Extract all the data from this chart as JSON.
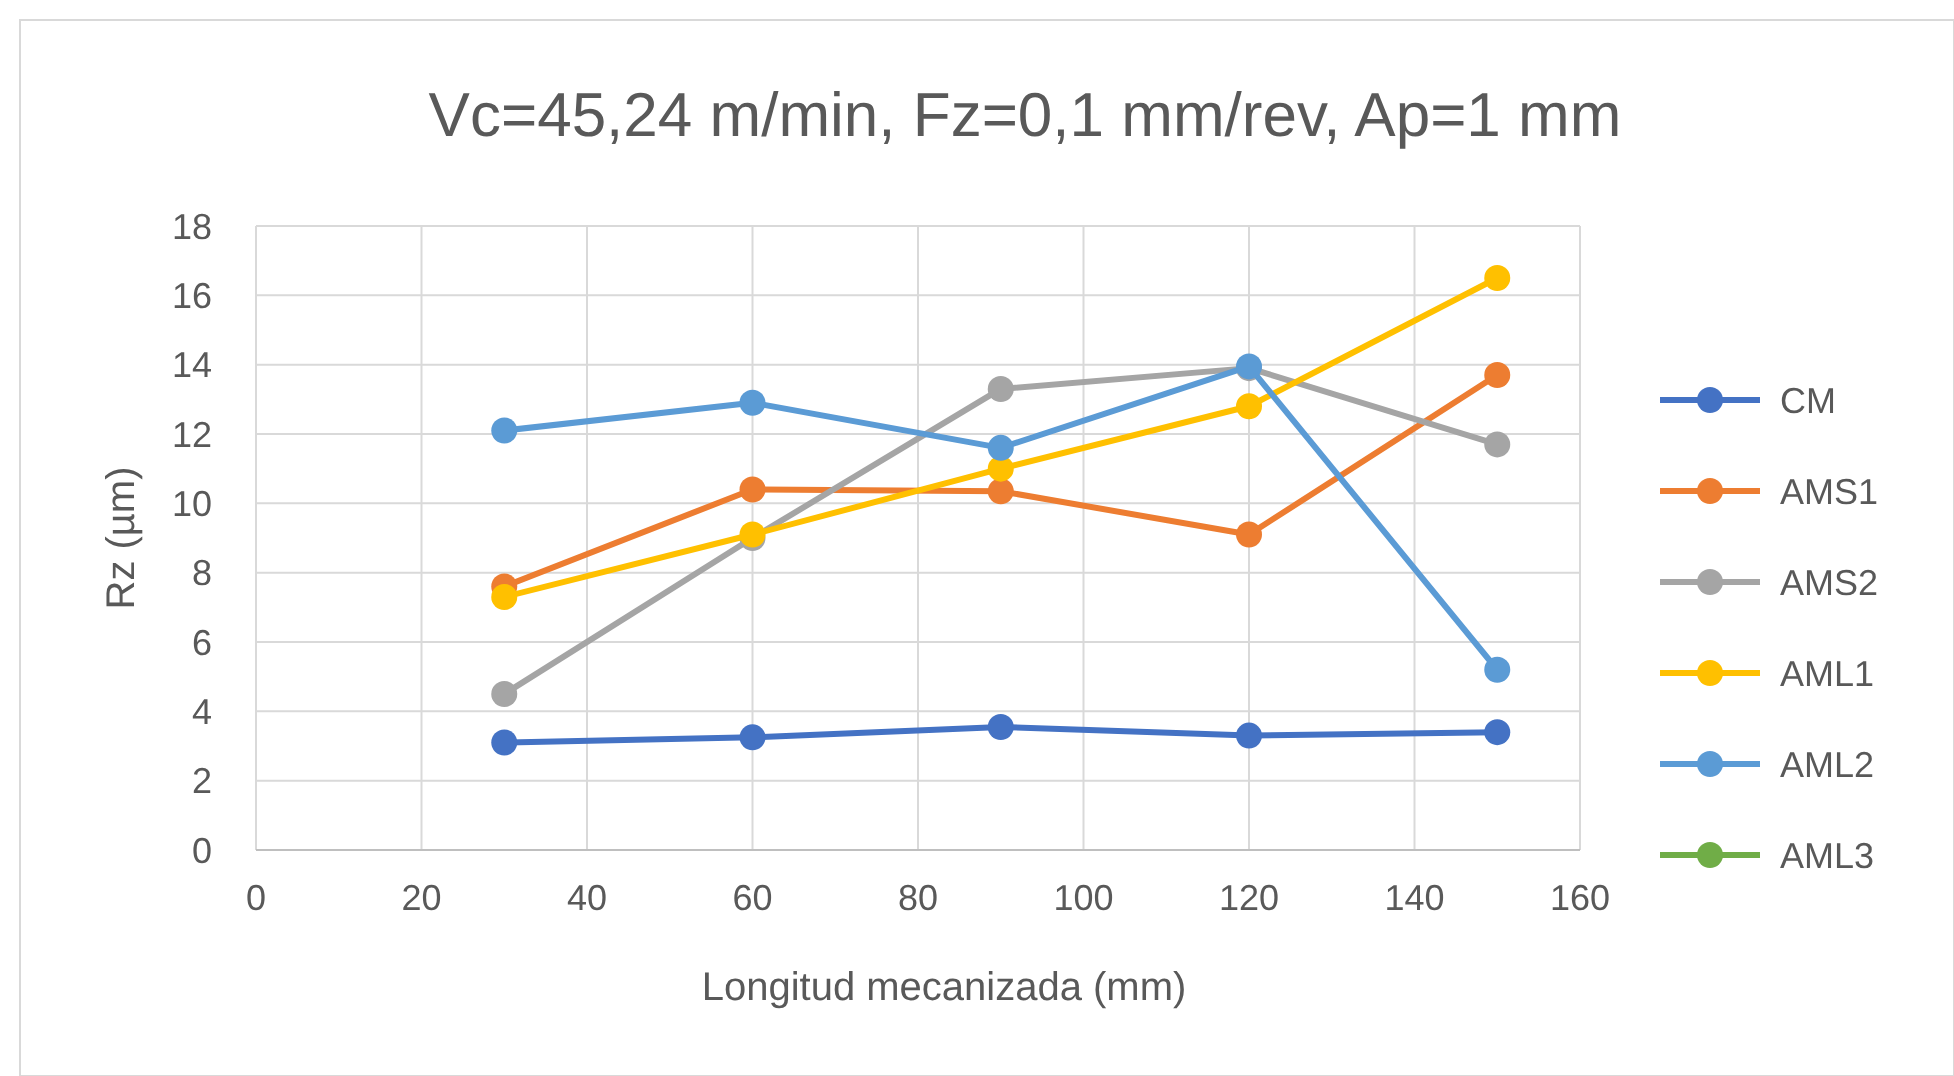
{
  "chart_data": {
    "type": "line",
    "title": "Vc=45,24 m/min, Fz=0,1 mm/rev, Ap=1 mm",
    "xlabel": "Longitud mecanizada (mm)",
    "ylabel": "Rz (µm)",
    "x": [
      30,
      60,
      90,
      120,
      150
    ],
    "series": [
      {
        "name": "CM",
        "color": "#4472c4",
        "values": [
          3.1,
          3.25,
          3.55,
          3.3,
          3.4
        ]
      },
      {
        "name": "AMS1",
        "color": "#ed7d31",
        "values": [
          7.6,
          10.4,
          10.35,
          9.1,
          13.7
        ]
      },
      {
        "name": "AMS2",
        "color": "#a5a5a5",
        "values": [
          4.5,
          9.0,
          13.3,
          13.9,
          11.7
        ]
      },
      {
        "name": "AML1",
        "color": "#ffc000",
        "values": [
          7.3,
          9.1,
          11.0,
          12.8,
          16.5
        ]
      },
      {
        "name": "AML2",
        "color": "#5b9bd5",
        "values": [
          12.1,
          12.9,
          11.6,
          13.95,
          5.2
        ]
      },
      {
        "name": "AML3",
        "color": "#70ad47",
        "values": [
          null,
          null,
          null,
          null,
          null
        ]
      }
    ],
    "xlim": [
      0,
      160
    ],
    "xticks": [
      0,
      20,
      40,
      60,
      80,
      100,
      120,
      140,
      160
    ],
    "ylim": [
      0,
      18
    ],
    "yticks": [
      0,
      2,
      4,
      6,
      8,
      10,
      12,
      14,
      16,
      18
    ],
    "grid": true,
    "legend": "right",
    "marker": "circle",
    "line_style": "solid"
  }
}
